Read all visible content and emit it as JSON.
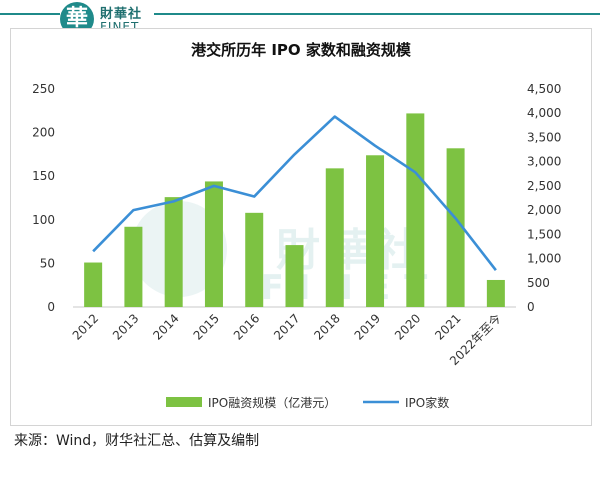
{
  "brand": {
    "logo_glyph": "華",
    "name_cn": "財華社",
    "name_en": "FINET",
    "color": "#1f8a8a"
  },
  "watermark": {
    "cn": "財華社",
    "en": "FINET"
  },
  "footer": {
    "source": "来源：Wind，财华社汇总、估算及编制"
  },
  "chart_data": {
    "type": "bar",
    "title": "港交所历年 IPO 家数和融资规模",
    "categories": [
      "2012",
      "2013",
      "2014",
      "2015",
      "2016",
      "2017",
      "2018",
      "2019",
      "2020",
      "2021",
      "2022年至今"
    ],
    "left_axis": {
      "ylim": [
        0,
        250
      ],
      "ticks": [
        "0",
        "50",
        "100",
        "150",
        "200",
        "250"
      ]
    },
    "right_axis": {
      "ylim": [
        0,
        4500
      ],
      "ticks": [
        "0",
        "500",
        "1,000",
        "1,500",
        "2,000",
        "2,500",
        "3,000",
        "3,500",
        "4,000",
        "4,500"
      ]
    },
    "series": [
      {
        "name": "IPO融资规模（亿港元）",
        "type": "bar",
        "axis": "left",
        "color": "#7dc242",
        "values": [
          51,
          92,
          126,
          144,
          108,
          71,
          159,
          174,
          222,
          182,
          31
        ]
      },
      {
        "name": "IPO家数",
        "type": "line",
        "axis": "right",
        "color": "#3b8fd6",
        "values": [
          1150,
          2000,
          2180,
          2500,
          2280,
          3150,
          3930,
          3330,
          2780,
          1830,
          760
        ]
      }
    ],
    "legend_position": "bottom",
    "grid": false
  }
}
